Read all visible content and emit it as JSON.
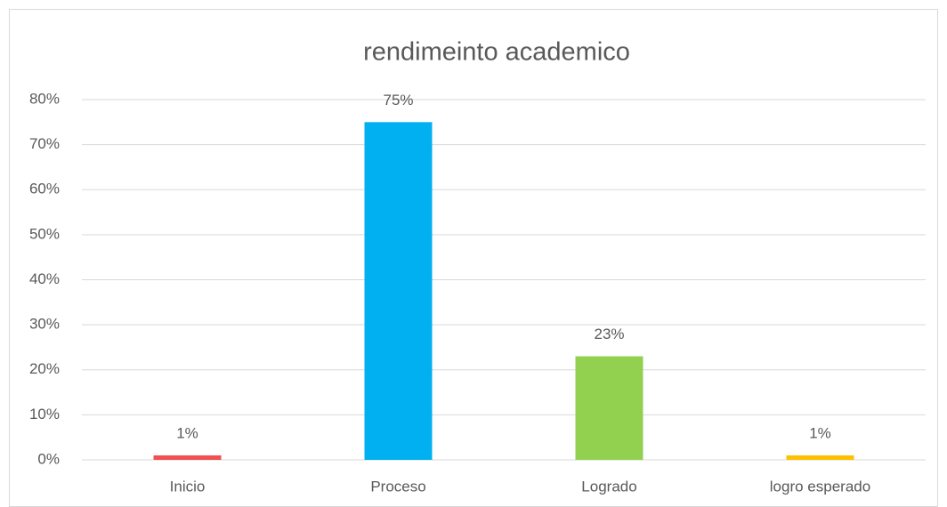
{
  "chart_data": {
    "type": "bar",
    "title": "rendimeinto academico",
    "categories": [
      "Inicio",
      "Proceso",
      "Logrado",
      "logro esperado"
    ],
    "values": [
      1,
      75,
      23,
      1
    ],
    "value_labels": [
      "1%",
      "75%",
      "23%",
      "1%"
    ],
    "colors": [
      "#f0504f",
      "#00b0f0",
      "#92d050",
      "#ffc000"
    ],
    "ylim": [
      0,
      80
    ],
    "yticks": [
      {
        "value": 0,
        "label": "0%"
      },
      {
        "value": 10,
        "label": "10%"
      },
      {
        "value": 20,
        "label": "20%"
      },
      {
        "value": 30,
        "label": "30%"
      },
      {
        "value": 40,
        "label": "40%"
      },
      {
        "value": 50,
        "label": "50%"
      },
      {
        "value": 60,
        "label": "60%"
      },
      {
        "value": 70,
        "label": "70%"
      },
      {
        "value": 80,
        "label": "80%"
      }
    ],
    "grid": true
  }
}
